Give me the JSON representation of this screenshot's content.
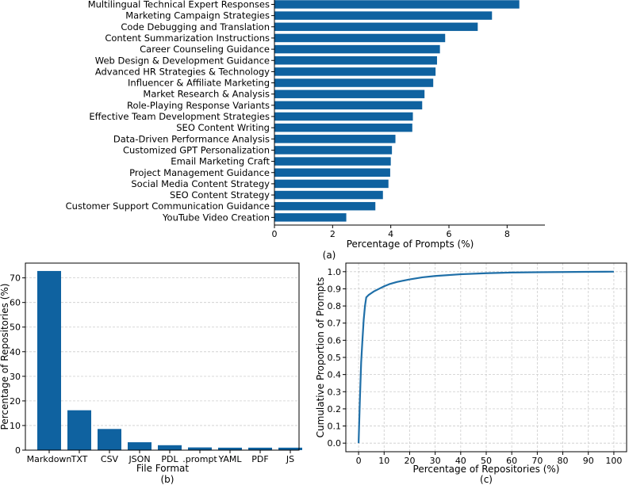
{
  "colors": {
    "bar": "#0f62a0",
    "line": "#1f6fa8"
  },
  "chart_data": [
    {
      "id": "a",
      "type": "bar",
      "orientation": "horizontal",
      "panel_label": "(a)",
      "xlabel": "Percentage of Prompts (%)",
      "ylabel": "",
      "xlim": [
        0,
        9.3
      ],
      "xticks": [
        "0",
        "2",
        "4",
        "6",
        "8"
      ],
      "grid": false,
      "categories": [
        "Multilingual Technical Expert Responses",
        "Marketing Campaign Strategies",
        "Code Debugging and Translation",
        "Content Summarization Instructions",
        "Career Counseling Guidance",
        "Web Design & Development Guidance",
        "Advanced HR Strategies & Technology",
        "Influencer & Affiliate Marketing",
        "Market Research & Analysis",
        "Role-Playing Response Variants",
        "Effective Team Development Strategies",
        "SEO Content Writing",
        "Data-Driven Performance Analysis",
        "Customized GPT Personalization",
        "Email Marketing Craft",
        "Project Management Guidance",
        "Social Media Content Strategy",
        "SEO Content Strategy",
        "Customer Support Communication Guidance",
        "YouTube Video Creation"
      ],
      "values": [
        8.42,
        7.48,
        6.99,
        5.87,
        5.69,
        5.59,
        5.54,
        5.46,
        5.16,
        5.08,
        4.76,
        4.74,
        4.16,
        4.04,
        4.0,
        3.98,
        3.92,
        3.73,
        3.47,
        2.47
      ]
    },
    {
      "id": "b",
      "type": "bar",
      "orientation": "vertical",
      "panel_label": "(b)",
      "xlabel": "File Format",
      "ylabel": "Percentage of Repositories (%)",
      "ylim": [
        0,
        76
      ],
      "yticks": [
        "0",
        "10",
        "20",
        "30",
        "40",
        "50",
        "60",
        "70"
      ],
      "grid": "y-dashed",
      "categories": [
        "Markdown",
        "TXT",
        "CSV",
        "JSON",
        "PDL",
        ".prompt",
        "YAML",
        "PDF",
        "JS"
      ],
      "values": [
        72.8,
        16.2,
        8.6,
        3.2,
        2.0,
        1.1,
        1.0,
        1.0,
        1.0
      ]
    },
    {
      "id": "c",
      "type": "line",
      "panel_label": "(c)",
      "xlabel": "Percentage of Repositories (%)",
      "ylabel": "Cumulative Proportion of Prompts",
      "xlim": [
        -5,
        105
      ],
      "ylim": [
        -0.05,
        1.05
      ],
      "xticks": [
        "0",
        "10",
        "20",
        "30",
        "40",
        "50",
        "60",
        "70",
        "80",
        "90",
        "100"
      ],
      "yticks": [
        "0.0",
        "0.1",
        "0.2",
        "0.3",
        "0.4",
        "0.5",
        "0.6",
        "0.7",
        "0.8",
        "0.9",
        "1.0"
      ],
      "grid": "both-dashed",
      "x": [
        0,
        0.5,
        1,
        1.5,
        2,
        2.5,
        3,
        4,
        5,
        6,
        8,
        10,
        12,
        15,
        20,
        25,
        30,
        40,
        50,
        60,
        70,
        80,
        90,
        100
      ],
      "y": [
        0.0,
        0.25,
        0.47,
        0.6,
        0.72,
        0.8,
        0.85,
        0.865,
        0.875,
        0.885,
        0.9,
        0.915,
        0.927,
        0.94,
        0.955,
        0.967,
        0.975,
        0.985,
        0.991,
        0.995,
        0.997,
        0.998,
        0.999,
        1.0
      ]
    }
  ]
}
